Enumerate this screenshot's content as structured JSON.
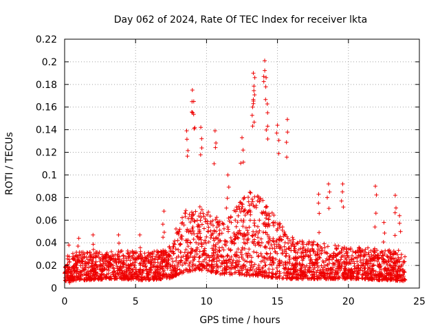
{
  "chart_data": {
    "type": "scatter",
    "title": "Day 062 of 2024, Rate Of TEC Index for receiver lkta",
    "xlabel": "GPS time / hours",
    "ylabel": "ROTI / TECUs",
    "xlim": [
      0,
      25
    ],
    "ylim": [
      0,
      0.22
    ],
    "xticks": [
      0,
      5,
      10,
      15,
      20,
      25
    ],
    "xtick_labels": [
      "0",
      "5",
      "10",
      "15",
      "20",
      "25"
    ],
    "yticks": [
      0,
      0.02,
      0.04,
      0.06,
      0.08,
      0.1,
      0.12,
      0.14,
      0.16,
      0.18,
      0.2,
      0.22
    ],
    "ytick_labels": [
      "0",
      "0.02",
      "0.04",
      "0.06",
      "0.08",
      "0.1",
      "0.12",
      "0.14",
      "0.16",
      "0.18",
      "0.2",
      "0.22"
    ],
    "grid": true,
    "marker": "+",
    "series": [
      {
        "name": "ROTI",
        "color": "#ee0000",
        "envelope": {
          "description": "approximate typical upper/lower envelope of the dense point cloud, hours vs TECU",
          "hours": [
            0,
            1,
            2,
            3,
            4,
            5,
            6,
            7,
            7.5,
            8,
            8.5,
            9,
            9.5,
            10,
            11,
            12,
            12.5,
            13,
            13.5,
            14,
            15,
            16,
            17,
            18,
            19,
            20,
            21,
            22,
            23,
            24
          ],
          "low": [
            0.006,
            0.007,
            0.007,
            0.008,
            0.008,
            0.007,
            0.007,
            0.008,
            0.009,
            0.012,
            0.014,
            0.015,
            0.016,
            0.015,
            0.012,
            0.012,
            0.012,
            0.011,
            0.011,
            0.01,
            0.009,
            0.008,
            0.008,
            0.008,
            0.008,
            0.008,
            0.008,
            0.007,
            0.007,
            0.006
          ],
          "high": [
            0.03,
            0.032,
            0.033,
            0.032,
            0.033,
            0.033,
            0.032,
            0.034,
            0.04,
            0.06,
            0.07,
            0.07,
            0.072,
            0.07,
            0.06,
            0.07,
            0.078,
            0.085,
            0.085,
            0.08,
            0.06,
            0.045,
            0.042,
            0.04,
            0.038,
            0.036,
            0.036,
            0.035,
            0.034,
            0.03
          ]
        },
        "peaks": [
          {
            "x": 0.3,
            "y": 0.038
          },
          {
            "x": 1.0,
            "y": 0.044
          },
          {
            "x": 2.0,
            "y": 0.047
          },
          {
            "x": 3.8,
            "y": 0.047
          },
          {
            "x": 5.3,
            "y": 0.047
          },
          {
            "x": 7.0,
            "y": 0.068
          },
          {
            "x": 8.6,
            "y": 0.139
          },
          {
            "x": 9.0,
            "y": 0.175
          },
          {
            "x": 9.1,
            "y": 0.165
          },
          {
            "x": 9.6,
            "y": 0.142
          },
          {
            "x": 10.6,
            "y": 0.139
          },
          {
            "x": 11.5,
            "y": 0.1
          },
          {
            "x": 12.5,
            "y": 0.133
          },
          {
            "x": 13.3,
            "y": 0.19
          },
          {
            "x": 13.4,
            "y": 0.186
          },
          {
            "x": 13.3,
            "y": 0.163
          },
          {
            "x": 14.1,
            "y": 0.201
          },
          {
            "x": 14.2,
            "y": 0.186
          },
          {
            "x": 14.3,
            "y": 0.155
          },
          {
            "x": 15.0,
            "y": 0.144
          },
          {
            "x": 15.7,
            "y": 0.149
          },
          {
            "x": 17.9,
            "y": 0.083
          },
          {
            "x": 18.6,
            "y": 0.092
          },
          {
            "x": 19.6,
            "y": 0.092
          },
          {
            "x": 21.9,
            "y": 0.09
          },
          {
            "x": 23.3,
            "y": 0.082
          },
          {
            "x": 23.6,
            "y": 0.064
          },
          {
            "x": 22.5,
            "y": 0.058
          }
        ]
      }
    ]
  }
}
